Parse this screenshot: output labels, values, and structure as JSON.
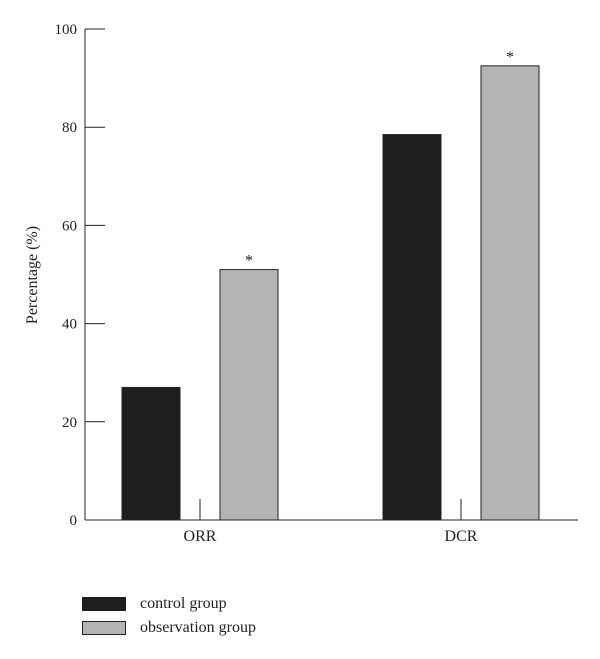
{
  "chart_data": {
    "type": "bar",
    "title": "",
    "xlabel": "",
    "ylabel": "Percentage (%)",
    "ylim": [
      0,
      100
    ],
    "yticks": [
      0,
      20,
      40,
      60,
      80,
      100
    ],
    "categories": [
      "ORR",
      "DCR"
    ],
    "series": [
      {
        "name": "control group",
        "values": [
          27,
          78.5
        ],
        "color": "#1e1e1e"
      },
      {
        "name": "observation group",
        "values": [
          51,
          92.5
        ],
        "color": "#b4b4b4"
      }
    ],
    "annotations": [
      {
        "category": "ORR",
        "series": "observation group",
        "text": "*"
      },
      {
        "category": "DCR",
        "series": "observation group",
        "text": "*"
      }
    ],
    "grid": false,
    "legend_position": "bottom-left"
  }
}
